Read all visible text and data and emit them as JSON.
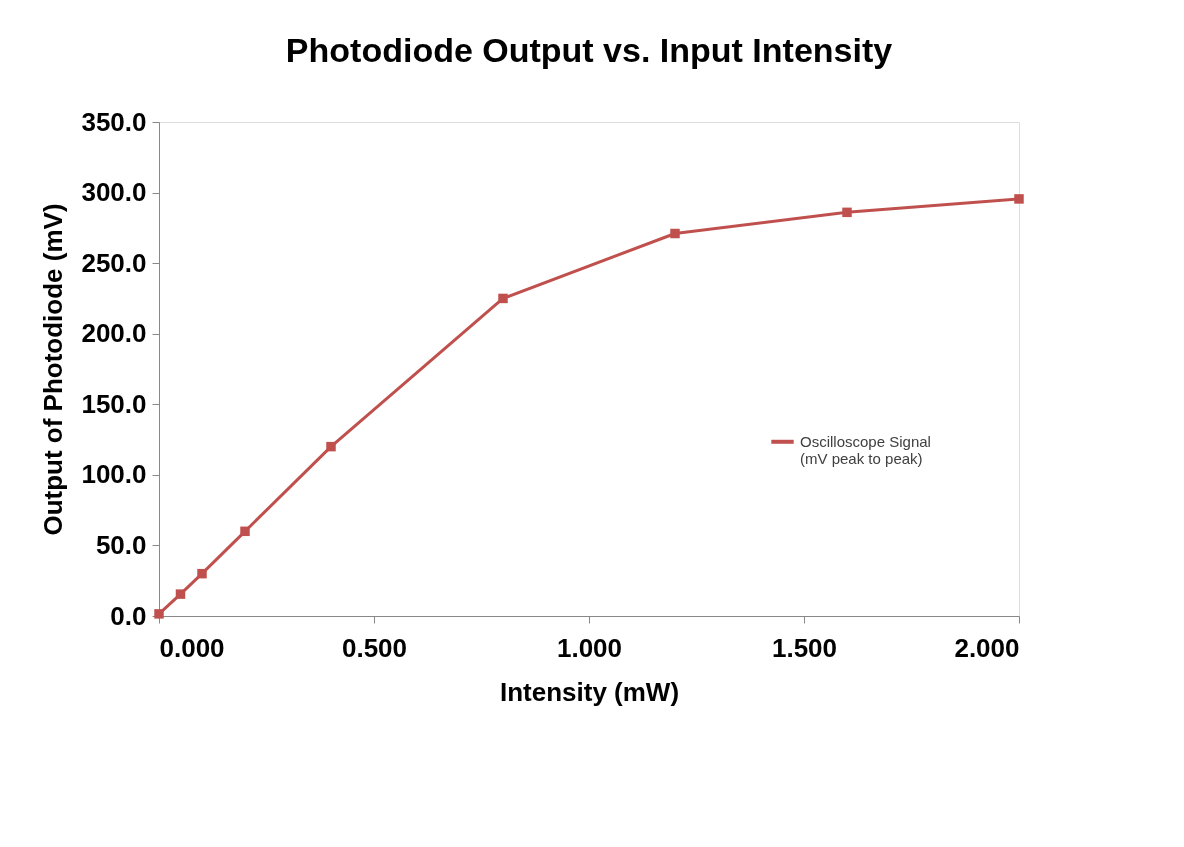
{
  "chart_data": {
    "type": "line",
    "title": "Photodiode Output vs. Input Intensity",
    "xlabel": "Intensity (mW)",
    "ylabel": "Output of Photodiode (mV)",
    "x": [
      0,
      0.05,
      0.1,
      0.2,
      0.4,
      0.8,
      1.2,
      1.6,
      2.0
    ],
    "series": [
      {
        "name": "Oscilloscope Signal\n(mV peak to peak)",
        "color": "#c0504d",
        "values": [
          1.5,
          15.5,
          30,
          60,
          120,
          225,
          271,
          286,
          295.5
        ]
      }
    ],
    "xlim": [
      0,
      2.0
    ],
    "xticks": [
      {
        "value": 0,
        "label": "0.000"
      },
      {
        "value": 0.5,
        "label": "0.500"
      },
      {
        "value": 1.0,
        "label": "1.000"
      },
      {
        "value": 1.5,
        "label": "1.500"
      },
      {
        "value": 2.0,
        "label": "2.000"
      }
    ],
    "ylim": [
      0,
      350
    ],
    "yticks": [
      {
        "value": 0,
        "label": "0.0"
      },
      {
        "value": 50,
        "label": "50.0"
      },
      {
        "value": 100,
        "label": "100.0"
      },
      {
        "value": 150,
        "label": "150.0"
      },
      {
        "value": 200,
        "label": "200.0"
      },
      {
        "value": 250,
        "label": "250.0"
      },
      {
        "value": 300,
        "label": "300.0"
      },
      {
        "value": 350,
        "label": "350.0"
      }
    ],
    "grid": false,
    "legend": "right",
    "marker": "square",
    "line_style": "solid"
  }
}
